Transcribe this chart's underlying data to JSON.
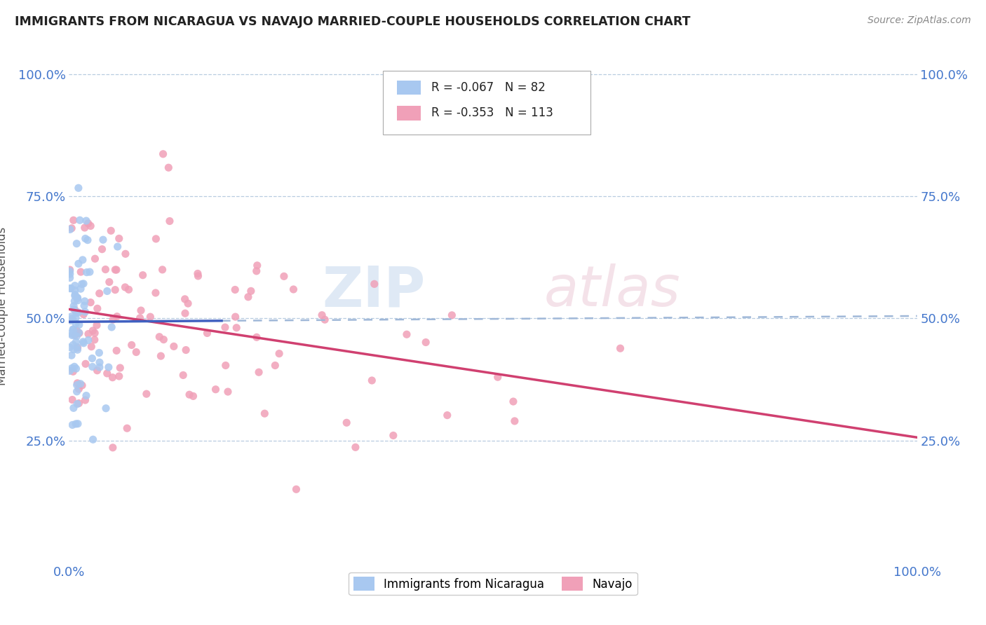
{
  "title": "IMMIGRANTS FROM NICARAGUA VS NAVAJO MARRIED-COUPLE HOUSEHOLDS CORRELATION CHART",
  "source": "Source: ZipAtlas.com",
  "legend_1_R": "-0.067",
  "legend_1_N": "82",
  "legend_2_R": "-0.353",
  "legend_2_N": "113",
  "legend_1_label": "Immigrants from Nicaragua",
  "legend_2_label": "Navajo",
  "color_blue": "#a8c8f0",
  "color_pink": "#f0a0b8",
  "color_blue_line": "#4060c0",
  "color_pink_line": "#d04070",
  "color_dashed": "#a0b8d8",
  "ylabel": "Married-couple Households",
  "background_color": "#ffffff",
  "grid_color": "#b8cce0",
  "title_color": "#222222",
  "source_color": "#888888"
}
